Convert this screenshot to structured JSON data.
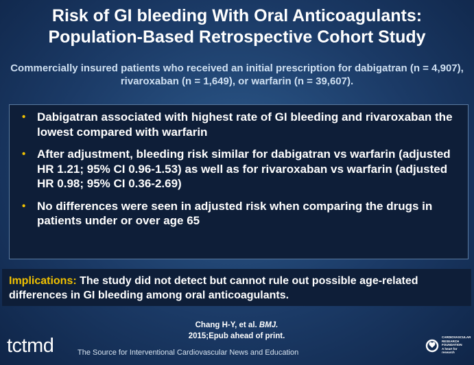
{
  "title_line1": "Risk of GI bleeding With Oral Anticoagulants:",
  "title_line2": "Population-Based Retrospective Cohort Study",
  "subtitle": "Commercially insured patients who received an initial prescription for dabigatran (n = 4,907), rivaroxaban (n = 1,649), or warfarin (n = 39,607).",
  "bullets": [
    "Dabigatran associated with highest rate of GI bleeding and rivaroxaban the lowest compared with warfarin",
    "After adjustment, bleeding risk similar for dabigatran vs warfarin (adjusted HR 1.21; 95% CI 0.96-1.53) as well as for rivaroxaban vs warfarin (adjusted HR 0.98; 95% CI 0.36-2.69)",
    "No differences were seen in adjusted risk when comparing the drugs in patients under or over age 65"
  ],
  "implications": {
    "label": "Implications:",
    "text": " The study did not detect but cannot rule out possible age-related differences in GI bleeding among oral anticoagulants."
  },
  "citation": {
    "authors": "Chang H-Y, et al. ",
    "journal": "BMJ.",
    "details": "2015;Epub ahead of print."
  },
  "footer": {
    "logo_prefix": "tct",
    "logo_suffix": "md",
    "tagline": "The Source for Interventional Cardiovascular News and Education",
    "crf_name": "CARDIOVASCULAR RESEARCH FOUNDATION",
    "crf_tagline": "A heart for research"
  },
  "colors": {
    "accent": "#f2c200",
    "background": "#1b3a66",
    "box": "#0e1e38"
  }
}
